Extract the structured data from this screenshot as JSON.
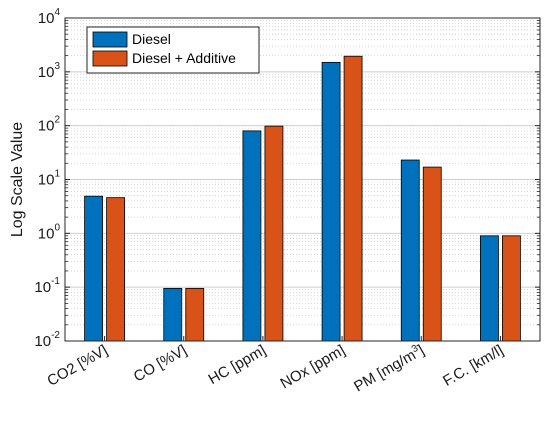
{
  "chart_data": {
    "type": "bar",
    "ylabel": "Log Scale Value",
    "yscale": "log",
    "ylim": [
      0.01,
      10000
    ],
    "grid": "on",
    "legend_position": "top-left",
    "categories": [
      "CO2 [%V]",
      "CO [%V]",
      "HC [ppm]",
      "NOx [ppm]",
      "PM [mg/m3]",
      "F.C. [km/l]"
    ],
    "y_ticks": [
      {
        "base": "10",
        "exp": "-2"
      },
      {
        "base": "10",
        "exp": "-1"
      },
      {
        "base": "10",
        "exp": "0"
      },
      {
        "base": "10",
        "exp": "1"
      },
      {
        "base": "10",
        "exp": "2"
      },
      {
        "base": "10",
        "exp": "3"
      },
      {
        "base": "10",
        "exp": "4"
      }
    ],
    "series": [
      {
        "name": "Diesel",
        "color": "#0072BD",
        "values": [
          4.9,
          0.095,
          80,
          1500,
          23,
          0.9
        ]
      },
      {
        "name": "Diesel + Additive",
        "color": "#D95319",
        "values": [
          4.6,
          0.095,
          98,
          1950,
          17,
          0.9
        ]
      }
    ]
  }
}
